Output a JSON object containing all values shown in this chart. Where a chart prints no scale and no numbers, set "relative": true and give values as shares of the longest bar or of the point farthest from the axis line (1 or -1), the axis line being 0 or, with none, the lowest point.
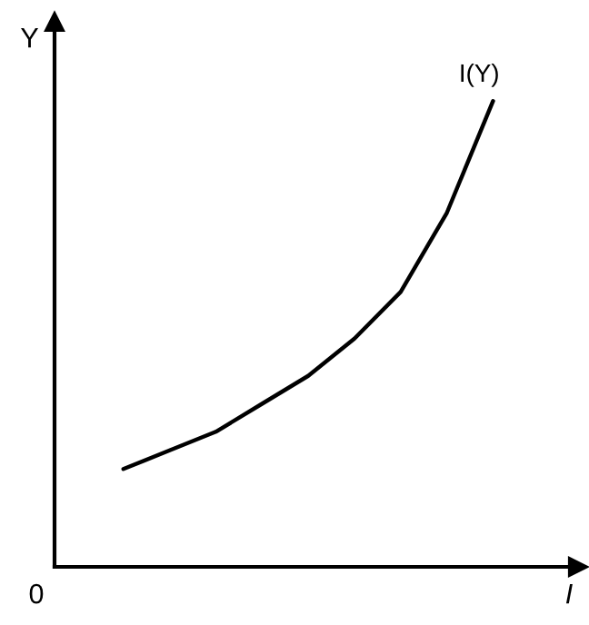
{
  "chart_data": {
    "type": "line",
    "relative": true,
    "xlabel": "I",
    "ylabel": "Y",
    "categories": [
      null,
      null,
      null,
      null,
      null,
      null,
      null,
      null,
      null
    ],
    "series": [
      {
        "name": "I(Y)",
        "color": "#000000",
        "values": [
          0.21,
          0.25,
          0.29,
          0.35,
          0.41,
          0.49,
          0.59,
          0.76,
          1.0
        ]
      }
    ],
    "annotations": [
      "0"
    ],
    "grid": false,
    "legend": false
  }
}
